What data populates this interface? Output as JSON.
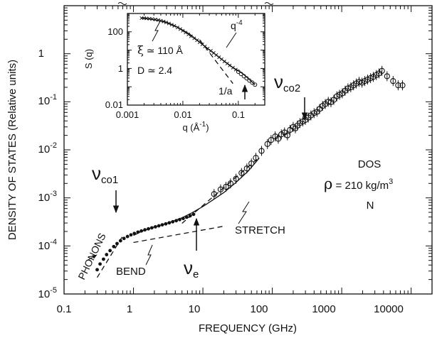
{
  "chart_data": [
    {
      "type": "scatter",
      "panel": "main",
      "xlabel": "FREQUENCY (GHz)",
      "ylabel": "DENSITY OF STATES (Relative units)",
      "xscale": "log",
      "yscale": "log",
      "xlim": [
        0.1,
        20000
      ],
      "ylim": [
        1e-05,
        10
      ],
      "x_ticks": [
        0.1,
        1,
        10,
        100,
        1000,
        10000
      ],
      "x_tick_labels": [
        "0.1",
        "1",
        "10",
        "100",
        "1000",
        "10000"
      ],
      "y_ticks": [
        1e-05,
        0.0001,
        0.001,
        0.01,
        0.1,
        1
      ],
      "y_tick_labels": [
        {
          "base": "10",
          "exp": "-5"
        },
        {
          "base": "10",
          "exp": "-4"
        },
        {
          "base": "10",
          "exp": "-3"
        },
        {
          "base": "10",
          "exp": "-2"
        },
        {
          "base": "10",
          "exp": "-1"
        },
        {
          "base": "1",
          "exp": ""
        }
      ],
      "grid": false,
      "series": [
        {
          "marker": "filled-circle",
          "x": [
            0.3,
            0.33,
            0.37,
            0.41,
            0.46,
            0.52,
            0.58,
            0.65,
            0.73,
            0.82,
            0.92,
            1.03,
            1.16,
            1.3,
            1.46,
            1.64,
            1.84,
            2.07,
            2.32,
            2.6,
            2.92,
            3.28,
            3.68,
            4.13,
            4.63,
            5.2,
            5.84,
            6.55,
            7.35
          ],
          "y": [
            3.2e-05,
            4.2e-05,
            5.3e-05,
            6.6e-05,
            8e-05,
            9.7e-05,
            0.000112,
            0.000128,
            0.000143,
            0.000157,
            0.00017,
            0.000182,
            0.000194,
            0.000205,
            0.000216,
            0.000227,
            0.000238,
            0.00025,
            0.000262,
            0.000275,
            0.000288,
            0.000303,
            0.000318,
            0.000335,
            0.000353,
            0.000373,
            0.000396,
            0.000423,
            0.000455
          ]
        },
        {
          "marker": "open-circle-errorbar",
          "x": [
            14.5,
            18,
            21.5,
            25,
            30,
            36,
            43,
            50,
            58,
            70,
            85,
            96,
            110,
            122,
            135,
            150,
            165,
            180,
            200,
            215,
            230,
            250,
            275,
            300,
            330,
            360,
            400,
            440,
            480,
            530,
            580,
            640,
            700,
            770,
            850,
            930,
            1020,
            1120,
            1230,
            1350,
            1480,
            1620,
            1780,
            1960,
            2150,
            2360,
            2600,
            2850,
            3150,
            3450,
            3800,
            4500,
            5500,
            6500,
            7500
          ],
          "y": [
            0.0012,
            0.0015,
            0.0017,
            0.002,
            0.0025,
            0.0033,
            0.0041,
            0.0052,
            0.0068,
            0.0095,
            0.0132,
            0.016,
            0.019,
            0.017,
            0.021,
            0.023,
            0.02,
            0.026,
            0.03,
            0.028,
            0.032,
            0.036,
            0.039,
            0.042,
            0.047,
            0.052,
            0.058,
            0.062,
            0.071,
            0.082,
            0.09,
            0.1,
            0.098,
            0.11,
            0.13,
            0.14,
            0.15,
            0.17,
            0.19,
            0.2,
            0.22,
            0.24,
            0.26,
            0.25,
            0.27,
            0.29,
            0.31,
            0.33,
            0.36,
            0.39,
            0.44,
            0.34,
            0.27,
            0.22,
            0.22
          ]
        },
        {
          "line": "solid",
          "x": [
            1,
            1.3,
            1.8,
            2.5,
            3.5,
            5,
            7,
            10,
            14,
            20,
            30,
            45,
            65
          ],
          "y": [
            0.000165,
            0.0002,
            0.000238,
            0.000272,
            0.000316,
            0.000385,
            0.00049,
            0.000662,
            0.000912,
            0.00129,
            0.0021,
            0.00363,
            0.00676
          ]
        },
        {
          "line": "dashed",
          "x": [
            0.3,
            0.7
          ],
          "y": [
            2.2e-05,
            0.00016
          ]
        },
        {
          "line": "dashed",
          "x": [
            1,
            20
          ],
          "y": [
            0.000118,
            0.000257
          ]
        },
        {
          "line": "dashed",
          "x": [
            5,
            60
          ],
          "y": [
            0.000295,
            0.00631
          ]
        }
      ],
      "annotations": [
        {
          "text": "PHONONS",
          "kind": "label",
          "x": 0.25,
          "y": 6e-05
        },
        {
          "text": "BEND",
          "kind": "label",
          "x": 1.5,
          "y": 2.8e-05
        },
        {
          "text": "STRETCH",
          "kind": "label",
          "x": 70,
          "y": 0.00015
        },
        {
          "text": "DOS",
          "kind": "label",
          "x": 1700,
          "y": 0.006
        },
        {
          "text": "N",
          "kind": "label",
          "x": 1800,
          "y": 0.00045
        },
        {
          "symbol": "ν",
          "sub": "co1",
          "kind": "arrow-label",
          "x": 0.6,
          "y": 0.0016
        },
        {
          "symbol": "ν",
          "sub": "e",
          "kind": "arrow-label",
          "x": 7.3,
          "y": 2e-05
        },
        {
          "symbol": "ν",
          "sub": "co2",
          "kind": "arrow-label",
          "x": 260,
          "y": 0.27
        },
        {
          "symbol": "ρ",
          "text": " = 210 kg/m",
          "sup": "3",
          "kind": "label",
          "x": 800,
          "y": 0.002
        }
      ]
    },
    {
      "type": "scatter",
      "panel": "inset",
      "xlabel": "q (Å",
      "xlabel_sup": "-1",
      "xlabel_suffix": ")",
      "ylabel": "S (q)",
      "xscale": "log",
      "yscale": "log",
      "xlim": [
        0.001,
        0.3
      ],
      "ylim": [
        0.01,
        1000
      ],
      "x_ticks": [
        0.001,
        0.01,
        0.1
      ],
      "x_tick_labels": [
        "0.001",
        "0.01",
        "0.1"
      ],
      "y_ticks": [
        0.01,
        1,
        100
      ],
      "y_tick_labels": [
        "0.01",
        "1",
        "100"
      ],
      "series": [
        {
          "marker": "cross",
          "x": [
            0.0018,
            0.002,
            0.0022,
            0.0025,
            0.0028,
            0.0032,
            0.0036,
            0.004,
            0.0045,
            0.005,
            0.0056,
            0.0063,
            0.007,
            0.008,
            0.009,
            0.01,
            0.0112,
            0.0126,
            0.014,
            0.016,
            0.018,
            0.02,
            0.0224,
            0.025,
            0.028,
            0.032,
            0.036,
            0.04,
            0.045,
            0.05,
            0.056,
            0.063,
            0.07,
            0.08,
            0.09
          ],
          "y": [
            560,
            555,
            540,
            520,
            500,
            470,
            440,
            405,
            365,
            325,
            285,
            245,
            210,
            172,
            141,
            114,
            91,
            72,
            57,
            44,
            34.5,
            27,
            20.7,
            15.9,
            12.2,
            9.2,
            7,
            5.4,
            4.1,
            3.2,
            2.4,
            1.85,
            1.45,
            1.1,
            0.86
          ]
        },
        {
          "marker": "open-circle",
          "x": [
            0.1,
            0.112,
            0.126,
            0.141,
            0.158,
            0.178,
            0.2
          ],
          "y": [
            0.66,
            0.5,
            0.38,
            0.29,
            0.22,
            0.17,
            0.13
          ]
        },
        {
          "line": "solid",
          "x": [
            0.0018,
            0.003,
            0.005,
            0.008,
            0.013,
            0.02,
            0.03,
            0.05,
            0.08,
            0.12,
            0.2
          ],
          "y": [
            580,
            460,
            330,
            180,
            78,
            28,
            10.5,
            3.2,
            1.12,
            0.52,
            0.13
          ]
        },
        {
          "line": "dashed",
          "x": [
            0.02,
            0.08
          ],
          "y": [
            37,
            0.15
          ]
        }
      ],
      "annotations": [
        {
          "symbol": "ξ",
          "text": " ≃ 110 Å",
          "kind": "label"
        },
        {
          "text": "D ≃ 2.4",
          "kind": "label"
        },
        {
          "text": "q",
          "sup": "-4",
          "kind": "label"
        },
        {
          "text": "1/a",
          "kind": "arrow-label",
          "x": 0.14
        }
      ]
    }
  ]
}
